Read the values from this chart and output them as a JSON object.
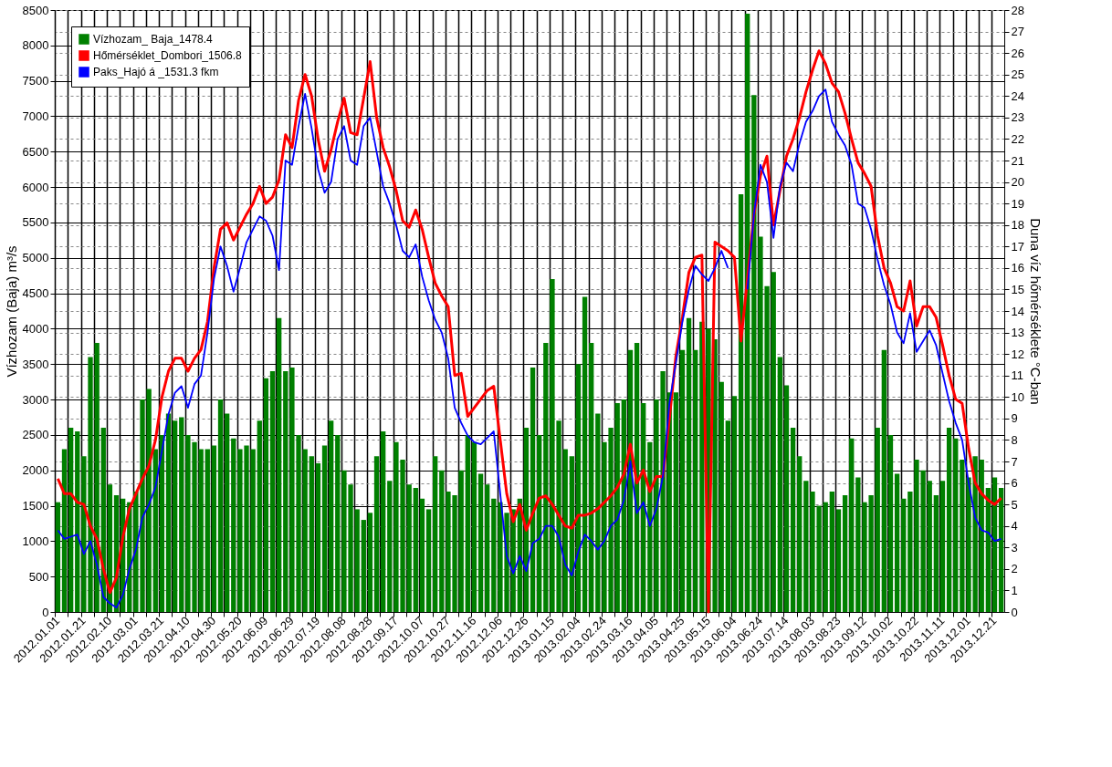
{
  "chart_data": {
    "type": "bar",
    "categories": [
      "2012.01.01",
      null,
      null,
      null,
      "2012.01.21",
      null,
      null,
      null,
      "2012.02.10",
      null,
      null,
      null,
      "2012.03.01",
      null,
      null,
      null,
      "2012.03.21",
      null,
      null,
      null,
      "2012.04.10",
      null,
      null,
      null,
      "2012.04.30",
      null,
      null,
      null,
      "2012.05.20",
      null,
      null,
      null,
      "2012.06.09",
      null,
      null,
      null,
      "2012.06.29",
      null,
      null,
      null,
      "2012.07.19",
      null,
      null,
      null,
      "2012.08.08",
      null,
      null,
      null,
      "2012.08.28",
      null,
      null,
      null,
      "2012.09.17",
      null,
      null,
      null,
      "2012.10.07",
      null,
      null,
      null,
      "2012.10.27",
      null,
      null,
      null,
      "2012.11.16",
      null,
      null,
      null,
      "2012.12.06",
      null,
      null,
      null,
      "2012.12.26",
      null,
      null,
      null,
      "2013.01.15",
      null,
      null,
      null,
      "2013.02.04",
      null,
      null,
      null,
      "2013.02.24",
      null,
      null,
      null,
      "2013.03.16",
      null,
      null,
      null,
      "2013.04.05",
      null,
      null,
      null,
      "2013.04.25",
      null,
      null,
      null,
      "2013.05.15",
      null,
      null,
      null,
      "2013.06.04",
      null,
      null,
      null,
      "2013.06.24",
      null,
      null,
      null,
      "2013.07.14",
      null,
      null,
      null,
      "2013.08.03",
      null,
      null,
      null,
      "2013.08.23",
      null,
      null,
      null,
      "2013.09.12",
      null,
      null,
      null,
      "2013.10.02",
      null,
      null,
      null,
      "2013.10.22",
      null,
      null,
      null,
      "2013.11.11",
      null,
      null,
      null,
      "2013.12.01",
      null,
      null,
      null,
      "2013.12.21",
      null
    ],
    "ylabel": "Vízhozam (Baja) m³/s",
    "y2label": "Duna víz hőmérséklete °C-ban",
    "ylim": [
      0,
      8500
    ],
    "yticks": [
      0,
      500,
      1000,
      1500,
      2000,
      2500,
      3000,
      3500,
      4000,
      4500,
      5000,
      5500,
      6000,
      6500,
      7000,
      7500,
      8000,
      8500
    ],
    "y2lim": [
      0,
      28
    ],
    "y2ticks": [
      0,
      1,
      2,
      3,
      4,
      5,
      6,
      7,
      8,
      9,
      10,
      11,
      12,
      13,
      14,
      15,
      16,
      17,
      18,
      19,
      20,
      21,
      22,
      23,
      24,
      25,
      26,
      27,
      28
    ],
    "grid": true,
    "legend": "top left",
    "marker": "none",
    "series": [
      {
        "name": "Vízhozam_ Baja_1478.4",
        "color": "#008000",
        "values": [
          1550,
          2300,
          2600,
          2550,
          2200,
          3600,
          3800,
          2600,
          1800,
          1650,
          1600,
          1550,
          1700,
          3000,
          3150,
          2300,
          2500,
          2800,
          2700,
          2750,
          2500,
          2400,
          2300,
          2300,
          2350,
          3000,
          2800,
          2450,
          2300,
          2350,
          2300,
          2700,
          3300,
          3400,
          4150,
          3400,
          3450,
          2500,
          2300,
          2200,
          2100,
          2350,
          2700,
          2500,
          2000,
          1800,
          1450,
          1300,
          1400,
          2200,
          2550,
          1850,
          2400,
          2150,
          1800,
          1750,
          1600,
          1450,
          2200,
          2000,
          1700,
          1650,
          2000,
          2500,
          2400,
          1950,
          1800,
          1600,
          1550,
          1400,
          1450,
          1600,
          2600,
          3450,
          2500,
          3800,
          4700,
          2700,
          2300,
          2200,
          3500,
          4450,
          3800,
          2800,
          2400,
          2600,
          2950,
          3000,
          3700,
          3800,
          2950,
          2400,
          3000,
          3400,
          3100,
          3100,
          3700,
          4150,
          3700,
          4100,
          4000,
          3850,
          3250,
          2700,
          3050,
          5900,
          8450,
          7300,
          5300,
          4600,
          4800,
          3600,
          3200,
          2600,
          2200,
          1850,
          1700,
          1500,
          1550,
          1700,
          1450,
          1650,
          2450,
          1900,
          1550,
          1650,
          2600,
          3700,
          2500,
          1950,
          1600,
          1700,
          2150,
          2000,
          1850,
          1650,
          1850,
          2600,
          2450,
          2150,
          1900,
          2200,
          2150,
          1750,
          1900,
          1750
        ]
      },
      {
        "name": "Hőmérséklet_Dombori_1506.8",
        "color": "#ff0000",
        "type": "line",
        "axis": "y2",
        "values": [
          6.2,
          5.5,
          5.5,
          5.1,
          5.0,
          4.0,
          3.4,
          2.0,
          0.9,
          1.6,
          3.5,
          4.8,
          5.5,
          6.2,
          6.8,
          8.0,
          10.0,
          11.2,
          11.8,
          11.8,
          11.2,
          11.8,
          12.2,
          13.5,
          16.0,
          17.8,
          18.1,
          17.3,
          17.9,
          18.5,
          19.0,
          19.8,
          19.0,
          19.3,
          20.1,
          22.2,
          21.6,
          23.8,
          25.0,
          24.0,
          22.0,
          20.5,
          21.5,
          22.8,
          23.9,
          22.3,
          22.2,
          23.9,
          25.6,
          23.0,
          21.6,
          20.7,
          19.6,
          18.2,
          17.9,
          18.7,
          17.8,
          16.5,
          15.3,
          14.7,
          14.2,
          11.0,
          11.1,
          9.1,
          9.5,
          9.9,
          10.3,
          10.5,
          8.0,
          5.5,
          4.2,
          5.0,
          3.8,
          4.6,
          5.3,
          5.4,
          5.0,
          4.5,
          4.0,
          3.9,
          4.5,
          4.5,
          4.6,
          4.8,
          5.1,
          5.4,
          5.8,
          6.4,
          7.8,
          6.0,
          6.6,
          5.6,
          6.3,
          6.3,
          9.0,
          11.9,
          13.7,
          15.8,
          16.5,
          16.6,
          0,
          17.2,
          17.0,
          16.8,
          16.5,
          12.6,
          15.5,
          18.5,
          20.3,
          21.2,
          18.0,
          19.6,
          21.2,
          22.0,
          23.0,
          24.2,
          25.2,
          26.1,
          25.5,
          24.6,
          24.2,
          23.2,
          22.0,
          20.9,
          20.4,
          19.8,
          17.5,
          16.0,
          15.3,
          14.2,
          14.0,
          15.4,
          13.3,
          14.2,
          14.2,
          13.7,
          12.4,
          11.0,
          9.9,
          9.7,
          7.6,
          6.0,
          5.5,
          5.2,
          5.0,
          5.3
        ]
      },
      {
        "name": "Paks_Hajó á _1531.3 fkm",
        "color": "#0000ff",
        "type": "line",
        "axis": "y2",
        "values": [
          3.8,
          3.4,
          3.5,
          3.6,
          2.7,
          3.3,
          2.2,
          0.7,
          0.4,
          0.2,
          0.8,
          2.0,
          2.9,
          4.4,
          5.0,
          5.8,
          7.5,
          9.2,
          10.2,
          10.5,
          9.5,
          10.6,
          11.0,
          13.0,
          15.5,
          17.0,
          16.1,
          14.9,
          16.0,
          17.2,
          17.8,
          18.4,
          18.2,
          17.5,
          15.9,
          21.0,
          20.8,
          22.6,
          24.1,
          22.5,
          20.6,
          19.5,
          20.0,
          22.0,
          22.6,
          21.0,
          20.8,
          22.6,
          23.0,
          21.4,
          19.8,
          19.0,
          18.0,
          16.8,
          16.5,
          17.1,
          15.6,
          14.5,
          13.6,
          13.0,
          11.8,
          9.5,
          8.8,
          8.2,
          7.9,
          7.8,
          8.1,
          8.4,
          5.5,
          2.6,
          1.8,
          2.6,
          1.9,
          3.2,
          3.4,
          4.0,
          4.0,
          3.5,
          2.2,
          1.7,
          2.8,
          3.6,
          3.3,
          2.9,
          3.3,
          4.0,
          4.3,
          5.2,
          7.0,
          4.6,
          5.1,
          4.0,
          4.8,
          6.3,
          9.7,
          11.6,
          13.5,
          15.0,
          16.1,
          15.7,
          15.4,
          16.0,
          16.8,
          16.0,
          null,
          null,
          15.0,
          18.5,
          20.8,
          20.0,
          17.4,
          19.8,
          20.9,
          20.5,
          21.8,
          22.8,
          23.3,
          24.0,
          24.3,
          22.8,
          22.2,
          21.7,
          20.8,
          19.0,
          18.8,
          17.8,
          16.4,
          15.2,
          14.3,
          13.0,
          12.5,
          13.9,
          12.1,
          12.6,
          13.1,
          12.4,
          11.1,
          9.8,
          8.8,
          8.0,
          6.0,
          4.4,
          3.8,
          3.7,
          3.3,
          3.4
        ]
      }
    ]
  }
}
